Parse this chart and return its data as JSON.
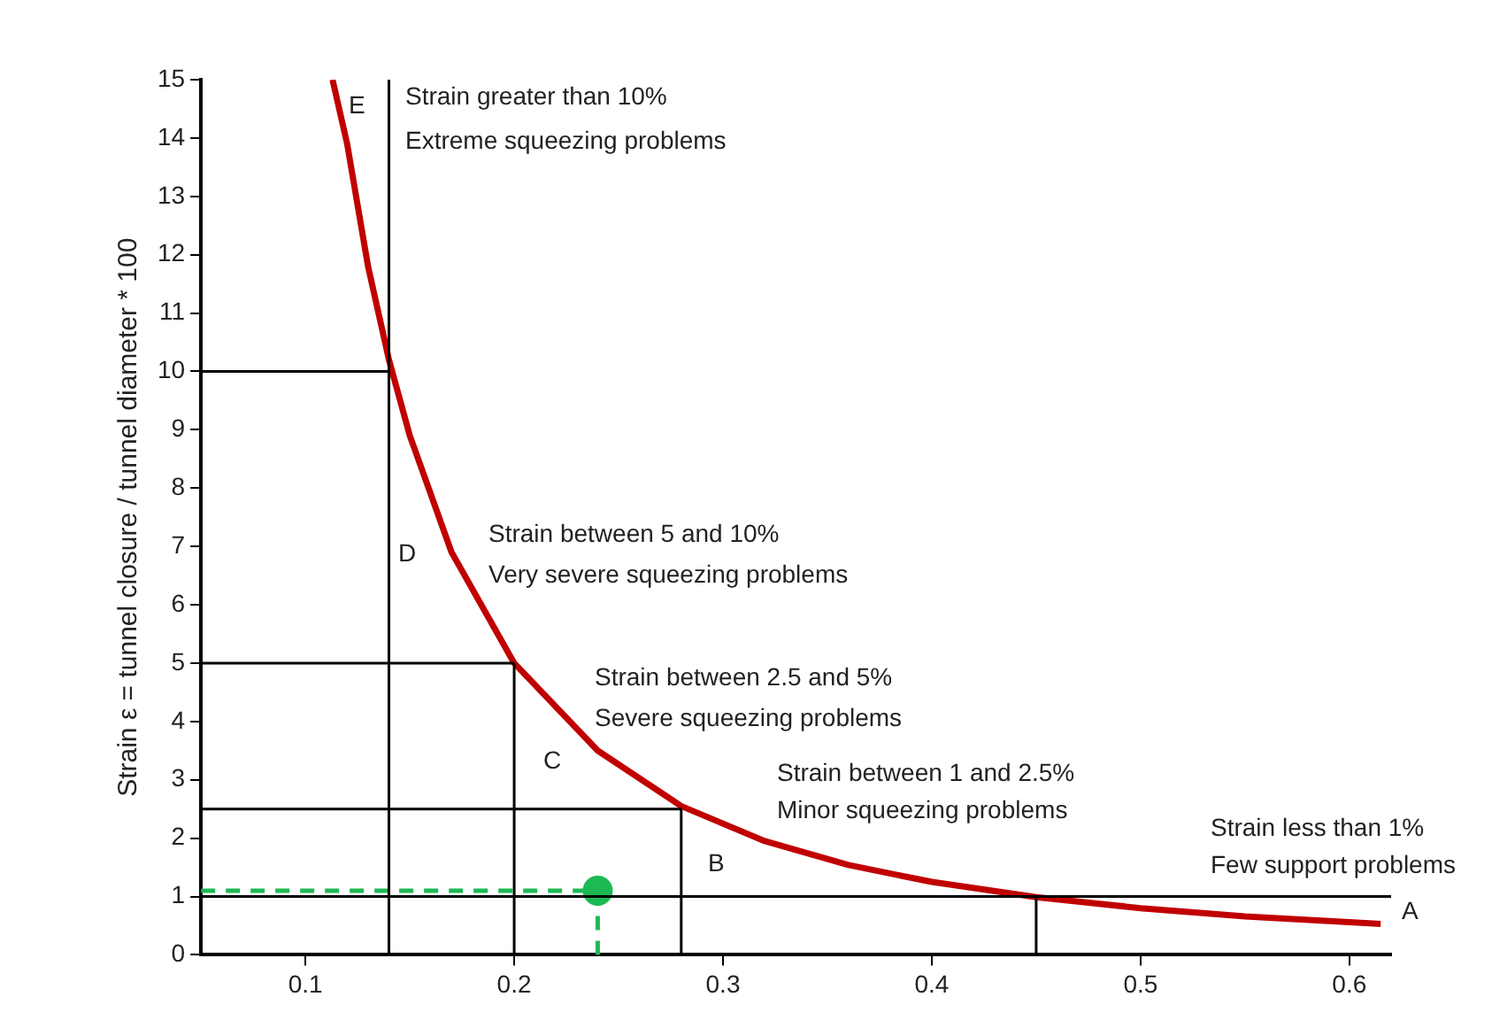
{
  "chart_data": {
    "type": "line",
    "ylabel": "Strain ε = tunnel closure / tunnel diameter * 100",
    "xlim": [
      0.05,
      0.62
    ],
    "xticks": [
      0.1,
      0.2,
      0.3,
      0.4,
      0.5,
      0.6
    ],
    "ylim": [
      0,
      15
    ],
    "yticks": [
      0,
      1,
      2,
      3,
      4,
      5,
      6,
      7,
      8,
      9,
      10,
      11,
      12,
      13,
      14,
      15
    ],
    "legend": false,
    "marker": "none",
    "series": [
      {
        "color": "#000000",
        "x": [
          0.05,
          0.14
        ],
        "values": [
          10,
          10
        ]
      },
      {
        "color": "#000000",
        "x": [
          0.05,
          0.2
        ],
        "values": [
          5,
          5
        ]
      },
      {
        "color": "#000000",
        "x": [
          0.05,
          0.28
        ],
        "values": [
          2.5,
          2.5
        ]
      },
      {
        "color": "#000000",
        "x": [
          0.05,
          0.62
        ],
        "values": [
          1,
          1
        ]
      },
      {
        "color": "#000000",
        "x": [
          0.14,
          0.14
        ],
        "values": [
          0,
          15
        ]
      },
      {
        "color": "#000000",
        "x": [
          0.2,
          0.2
        ],
        "values": [
          0,
          5
        ]
      },
      {
        "color": "#000000",
        "x": [
          0.28,
          0.28
        ],
        "values": [
          0,
          2.5
        ]
      },
      {
        "color": "#000000",
        "x": [
          0.45,
          0.45
        ],
        "values": [
          0,
          1
        ]
      },
      {
        "color": "#c00000",
        "x": [
          0.113,
          0.12,
          0.13,
          0.14,
          0.15,
          0.17,
          0.2,
          0.24,
          0.28,
          0.32,
          0.36,
          0.4,
          0.45,
          0.5,
          0.55,
          0.6,
          0.615
        ],
        "values": [
          15,
          13.9,
          11.8,
          10.2,
          8.9,
          6.9,
          5,
          3.5,
          2.55,
          1.95,
          1.54,
          1.25,
          0.99,
          0.8,
          0.66,
          0.56,
          0.53
        ]
      },
      {
        "type": "line",
        "color": "#1db954",
        "line_style": "dashed",
        "x": [
          0.05,
          0.24
        ],
        "values": [
          1.1,
          1.1
        ]
      },
      {
        "type": "line",
        "color": "#1db954",
        "line_style": "dashed",
        "x": [
          0.24,
          0.24
        ],
        "values": [
          0,
          1.1
        ]
      },
      {
        "type": "scatter",
        "color": "#1db954",
        "marker": "circle",
        "x": [
          0.24
        ],
        "values": [
          1.1
        ]
      }
    ],
    "annotations": [
      "E",
      "Strain greater than 10%",
      "Extreme squeezing problems",
      "D",
      "Strain between 5 and 10%",
      "Very severe squeezing problems",
      "C",
      "Strain between 2.5 and 5%",
      "Severe squeezing problems",
      "B",
      "Strain between 1 and 2.5%",
      "Minor squeezing problems",
      "Strain less than 1%",
      "Few support problems",
      "A"
    ]
  }
}
